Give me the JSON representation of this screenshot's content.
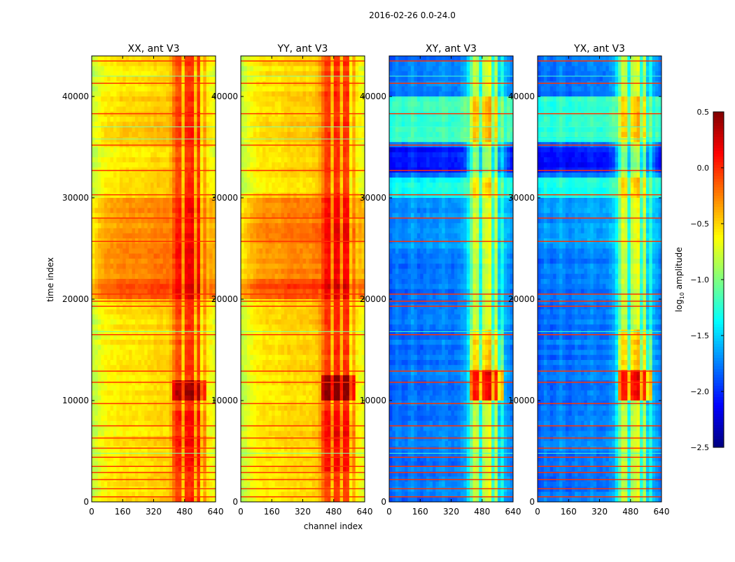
{
  "chart_data": {
    "type": "heatmap",
    "title": "2016-02-26 0.0-24.0",
    "xlabel": "channel index",
    "ylabel": "time index",
    "xlim": [
      0,
      640
    ],
    "ylim": [
      0,
      44000
    ],
    "xticks": [
      "0",
      "160",
      "320",
      "480",
      "640"
    ],
    "xtick_values": [
      0,
      160,
      320,
      480,
      640
    ],
    "yticks": [
      "0",
      "10000",
      "20000",
      "30000",
      "40000"
    ],
    "ytick_values": [
      0,
      10000,
      20000,
      30000,
      40000
    ],
    "colormap": "jet",
    "colorbar": {
      "label": "log10 amplitude",
      "label_main": "log",
      "label_sub": "10",
      "label_rest": " amplitude",
      "vmin": -2.5,
      "vmax": 0.5,
      "ticks": [
        "0.5",
        "0.0",
        "−0.5",
        "−1.0",
        "−1.5",
        "−2.0",
        "−2.5"
      ],
      "tick_values": [
        0.5,
        0.0,
        -0.5,
        -1.0,
        -1.5,
        -2.0,
        -2.5
      ]
    },
    "flagged_time_rows": [
      500,
      1300,
      2200,
      2900,
      3500,
      4400,
      5300,
      6300,
      7500,
      9700,
      11800,
      12900,
      16500,
      19300,
      19800,
      20500,
      25700,
      28000,
      30300,
      32700,
      35200,
      38300,
      41300,
      43500
    ],
    "cyan_time_rows": [
      4800,
      16800,
      35800,
      37000,
      42000
    ],
    "profile_channels": [
      0,
      40,
      80,
      120,
      160,
      200,
      240,
      280,
      320,
      360,
      400,
      440,
      480,
      520,
      560,
      600,
      640
    ],
    "panels": [
      {
        "title": "XX, ant V3",
        "profile": [
          -0.85,
          -0.7,
          -0.6,
          -0.6,
          -0.55,
          -0.55,
          -0.55,
          -0.55,
          -0.5,
          -0.5,
          -0.5,
          -0.1,
          -0.05,
          0.0,
          -0.05,
          -0.6,
          -0.7
        ],
        "time_bands": [
          [
            20000,
            22000,
            0.45
          ],
          [
            22000,
            30000,
            0.25
          ],
          [
            35000,
            40000,
            0.05
          ]
        ],
        "rfi_bands": [
          [
            10000,
            12000,
            0.45
          ],
          [
            3000,
            9000,
            0.15
          ]
        ],
        "rfi_stripes": [
          470,
          530,
          570
        ]
      },
      {
        "title": "YY, ant V3",
        "profile": [
          -0.85,
          -0.7,
          -0.6,
          -0.55,
          -0.55,
          -0.55,
          -0.5,
          -0.5,
          -0.5,
          -0.5,
          -0.45,
          -0.05,
          0.0,
          0.0,
          -0.05,
          -0.6,
          -0.7
        ],
        "time_bands": [
          [
            20000,
            22000,
            0.45
          ],
          [
            22000,
            30000,
            0.25
          ],
          [
            35000,
            40000,
            0.05
          ]
        ],
        "rfi_bands": [
          [
            10000,
            12500,
            0.55
          ],
          [
            3000,
            9000,
            0.15
          ]
        ],
        "rfi_stripes": [
          465,
          525,
          565
        ]
      },
      {
        "title": "XY, ant V3",
        "profile": [
          -1.9,
          -1.75,
          -1.85,
          -1.7,
          -1.85,
          -1.75,
          -1.8,
          -1.7,
          -1.8,
          -1.75,
          -1.6,
          -0.8,
          -0.9,
          -0.7,
          -0.9,
          -1.6,
          -1.8
        ],
        "time_bands": [
          [
            35500,
            40000,
            0.55
          ],
          [
            30000,
            32000,
            0.45
          ],
          [
            32500,
            35000,
            -0.3
          ],
          [
            25000,
            30000,
            0.1
          ]
        ],
        "rfi_bands": [
          [
            10000,
            13000,
            0.9
          ],
          [
            13000,
            17000,
            0.3
          ]
        ],
        "rfi_stripes": [
          470,
          530,
          570
        ]
      },
      {
        "title": "YX, ant V3",
        "profile": [
          -1.9,
          -1.75,
          -1.85,
          -1.7,
          -1.85,
          -1.75,
          -1.8,
          -1.7,
          -1.8,
          -1.75,
          -1.6,
          -0.8,
          -0.9,
          -0.7,
          -0.9,
          -1.6,
          -1.8
        ],
        "time_bands": [
          [
            35500,
            40000,
            0.55
          ],
          [
            30000,
            32000,
            0.45
          ],
          [
            32500,
            35000,
            -0.3
          ],
          [
            25000,
            30000,
            0.1
          ]
        ],
        "rfi_bands": [
          [
            10000,
            13000,
            0.9
          ],
          [
            13000,
            17000,
            0.3
          ]
        ],
        "rfi_stripes": [
          470,
          530,
          570
        ]
      }
    ]
  }
}
